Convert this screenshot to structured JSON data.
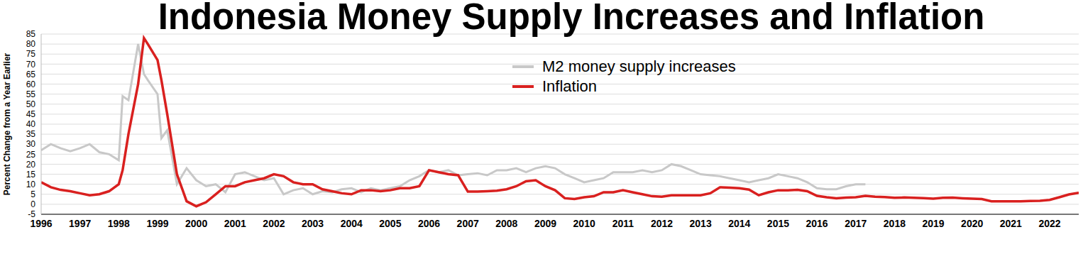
{
  "chart_data": {
    "type": "line",
    "title": "Indonesia Money Supply Increases and Inflation",
    "ylabel": "Percent Change from a Year Earlier",
    "x": [
      1996,
      1996.25,
      1996.5,
      1996.75,
      1997,
      1997.25,
      1997.5,
      1997.75,
      1998,
      1998.1,
      1998.25,
      1998.5,
      1998.65,
      1998.75,
      1999,
      1999.1,
      1999.25,
      1999.5,
      1999.75,
      2000,
      2000.25,
      2000.5,
      2000.75,
      2001,
      2001.25,
      2001.5,
      2001.75,
      2002,
      2002.25,
      2002.5,
      2002.75,
      2003,
      2003.25,
      2003.5,
      2003.75,
      2004,
      2004.25,
      2004.5,
      2004.75,
      2005,
      2005.25,
      2005.5,
      2005.75,
      2006,
      2006.25,
      2006.5,
      2006.75,
      2007,
      2007.25,
      2007.5,
      2007.75,
      2008,
      2008.25,
      2008.5,
      2008.75,
      2009,
      2009.25,
      2009.5,
      2009.75,
      2010,
      2010.25,
      2010.5,
      2010.75,
      2011,
      2011.25,
      2011.5,
      2011.75,
      2012,
      2012.25,
      2012.5,
      2012.75,
      2013,
      2013.25,
      2013.5,
      2013.75,
      2014,
      2014.25,
      2014.5,
      2014.75,
      2015,
      2015.25,
      2015.5,
      2015.75,
      2016,
      2016.25,
      2016.5,
      2016.75,
      2017,
      2017.25,
      2017.5,
      2017.75,
      2018,
      2018.25,
      2018.5,
      2018.75,
      2019,
      2019.25,
      2019.5,
      2019.75,
      2020,
      2020.25,
      2020.5,
      2020.75,
      2021,
      2021.25,
      2021.5,
      2021.75,
      2022,
      2022.25,
      2022.5,
      2022.75
    ],
    "series": [
      {
        "name": "M2 money supply increases",
        "color": "#c8c8c8",
        "values": [
          27,
          30,
          28,
          26.5,
          28,
          30,
          26,
          25,
          22,
          54,
          52,
          80,
          65,
          62,
          55,
          33,
          37,
          10,
          18,
          12,
          9,
          10,
          6,
          15,
          16,
          14,
          12,
          13,
          5,
          7,
          8,
          5,
          6.5,
          6,
          7.5,
          8,
          6,
          8,
          7,
          8,
          9,
          12,
          14,
          17,
          16,
          17,
          14.5,
          15,
          15.5,
          14.5,
          17,
          17,
          18,
          16,
          18,
          19,
          18,
          15,
          13,
          11,
          12,
          13,
          16,
          16,
          16,
          17,
          16,
          17,
          20,
          19,
          17,
          15,
          14.5,
          14,
          13,
          12,
          11,
          12,
          13,
          15,
          14,
          13,
          11,
          8,
          7.5,
          7.5,
          9,
          10,
          10,
          null,
          null,
          null,
          null,
          null,
          null,
          null,
          null,
          null,
          null,
          null,
          null,
          null,
          null,
          null,
          null,
          null,
          null,
          null,
          null,
          null,
          null
        ]
      },
      {
        "name": "Inflation",
        "color": "#d9201f",
        "values": [
          11,
          8.5,
          7.2,
          6.5,
          5.5,
          4.5,
          5,
          6.5,
          10,
          17,
          35,
          60,
          83,
          80,
          72,
          62,
          45,
          15,
          1.5,
          -1,
          1,
          5,
          9,
          9,
          11,
          12,
          13,
          15,
          14,
          11,
          10,
          10,
          7.5,
          6.5,
          5.5,
          5,
          7,
          7,
          6.5,
          7,
          8,
          8,
          9,
          17,
          16,
          15,
          14.5,
          6.3,
          6.3,
          6.5,
          6.8,
          7.5,
          9,
          11.5,
          12,
          9,
          7,
          3,
          2.6,
          3.5,
          4,
          6,
          6,
          7,
          6,
          5,
          4,
          3.8,
          4.5,
          4.5,
          4.5,
          4.5,
          5.5,
          8.5,
          8.3,
          8,
          7.3,
          4.5,
          6,
          7,
          7,
          7.2,
          6.5,
          4.2,
          3.5,
          3,
          3.3,
          3.5,
          4.2,
          3.8,
          3.6,
          3.2,
          3.4,
          3.2,
          3.1,
          2.8,
          3.2,
          3.3,
          3,
          2.8,
          2.6,
          1.5,
          1.5,
          1.5,
          1.5,
          1.6,
          1.7,
          2.2,
          3.5,
          4.9,
          5.7
        ]
      }
    ],
    "xlim": [
      1996,
      2022.75
    ],
    "xticks": [
      1996,
      1997,
      1998,
      1999,
      2000,
      2001,
      2002,
      2003,
      2004,
      2005,
      2006,
      2007,
      2008,
      2009,
      2010,
      2011,
      2012,
      2013,
      2014,
      2015,
      2016,
      2017,
      2018,
      2019,
      2020,
      2021,
      2022
    ],
    "ylim": [
      -5,
      85
    ],
    "yticks": [
      -5,
      0,
      5,
      10,
      15,
      20,
      25,
      30,
      35,
      40,
      45,
      50,
      55,
      60,
      65,
      70,
      75,
      80,
      85
    ],
    "grid": true,
    "legend": "top"
  }
}
